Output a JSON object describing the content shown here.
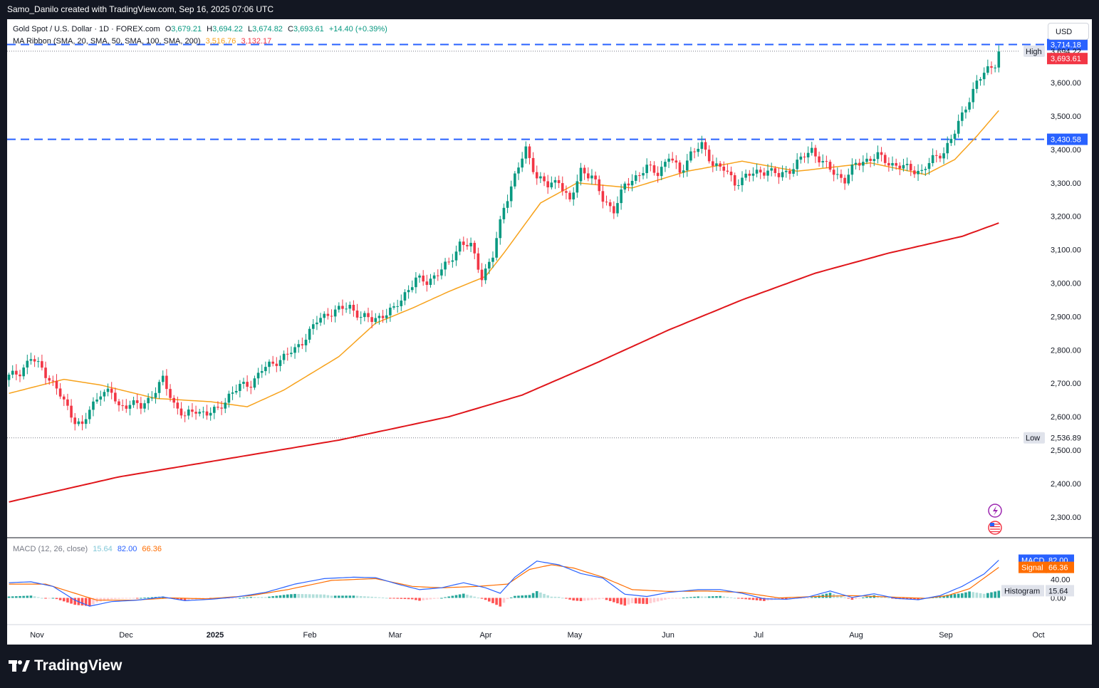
{
  "header": {
    "title": "Samo_Danilo created with TradingView.com, Sep 16, 2025 07:06 UTC"
  },
  "legend": {
    "symbol": "Gold Spot / U.S. Dollar · 1D · FOREX.com",
    "open_label": "O",
    "open": "3,679.21",
    "high_label": "H",
    "high": "3,694.22",
    "low_label": "L",
    "low": "3,674.82",
    "close_label": "C",
    "close": "3,693.61",
    "change": "+14.40 (+0.39%)",
    "ma_label": "MA Ribbon (SMA, 20, SMA, 50, SMA, 100, SMA, 200)",
    "ma1": "3,516.76",
    "ma2": "3,132.17",
    "macd_label": "MACD (12, 26, close)",
    "macd_hist": "15.64",
    "macd_macd": "82.00",
    "macd_signal": "66.36"
  },
  "currency": "USD",
  "brand": "TradingView",
  "colors": {
    "up": "#089981",
    "down": "#f23645",
    "ma20": "#f7a21b",
    "ma200": "#e0161b",
    "level": "#2962ff",
    "macd": "#2962ff",
    "signal": "#ff6d00"
  },
  "chart_data": [
    {
      "type": "candlestick",
      "title": "Gold Spot / U.S. Dollar · 1D · FOREX.com",
      "y_ticks": [
        "2,300.00",
        "2,400.00",
        "2,500.00",
        "2,600.00",
        "2,700.00",
        "2,800.00",
        "2,900.00",
        "3,000.00",
        "3,100.00",
        "3,200.00",
        "3,300.00",
        "3,400.00",
        "3,500.00",
        "3,600.00"
      ],
      "x_ticks": [
        "Nov",
        "Dec",
        "2025",
        "Feb",
        "Mar",
        "Apr",
        "May",
        "Jun",
        "Jul",
        "Aug",
        "Sep",
        "Oct"
      ],
      "ylim": [
        2240,
        3790
      ],
      "price_labels": [
        {
          "text": "3,714.18",
          "kind": "level"
        },
        {
          "text": "High",
          "kind": "tag"
        },
        {
          "text": "3,694.22",
          "kind": "plain"
        },
        {
          "text": "3,693.61",
          "kind": "last"
        },
        {
          "text": "3,430.58",
          "kind": "level"
        },
        {
          "text": "Low",
          "kind": "tag"
        },
        {
          "text": "2,536.89",
          "kind": "plain"
        }
      ],
      "levels": [
        3714.18,
        3430.58
      ],
      "high": 3694.22,
      "low": 2536.89,
      "close_anchors": [
        [
          0,
          2720
        ],
        [
          3,
          2735
        ],
        [
          6,
          2775
        ],
        [
          9,
          2745
        ],
        [
          12,
          2700
        ],
        [
          15,
          2645
        ],
        [
          18,
          2590
        ],
        [
          20,
          2570
        ],
        [
          22,
          2620
        ],
        [
          25,
          2675
        ],
        [
          28,
          2670
        ],
        [
          30,
          2630
        ],
        [
          33,
          2640
        ],
        [
          36,
          2630
        ],
        [
          39,
          2665
        ],
        [
          42,
          2710
        ],
        [
          45,
          2640
        ],
        [
          48,
          2600
        ],
        [
          51,
          2620
        ],
        [
          54,
          2610
        ],
        [
          57,
          2620
        ],
        [
          60,
          2665
        ],
        [
          63,
          2690
        ],
        [
          66,
          2700
        ],
        [
          69,
          2740
        ],
        [
          72,
          2760
        ],
        [
          75,
          2780
        ],
        [
          78,
          2800
        ],
        [
          81,
          2840
        ],
        [
          84,
          2885
        ],
        [
          87,
          2910
        ],
        [
          90,
          2920
        ],
        [
          93,
          2930
        ],
        [
          96,
          2900
        ],
        [
          99,
          2890
        ],
        [
          102,
          2905
        ],
        [
          105,
          2920
        ],
        [
          108,
          2970
        ],
        [
          111,
          3010
        ],
        [
          114,
          3005
        ],
        [
          117,
          3030
        ],
        [
          120,
          3060
        ],
        [
          123,
          3120
        ],
        [
          126,
          3110
        ],
        [
          129,
          3020
        ],
        [
          132,
          3080
        ],
        [
          135,
          3230
        ],
        [
          138,
          3320
        ],
        [
          141,
          3400
        ],
        [
          144,
          3320
        ],
        [
          147,
          3290
        ],
        [
          150,
          3310
        ],
        [
          153,
          3240
        ],
        [
          156,
          3340
        ],
        [
          159,
          3320
        ],
        [
          162,
          3250
        ],
        [
          165,
          3220
        ],
        [
          168,
          3290
        ],
        [
          171,
          3320
        ],
        [
          174,
          3345
        ],
        [
          177,
          3330
        ],
        [
          180,
          3380
        ],
        [
          183,
          3330
        ],
        [
          186,
          3390
        ],
        [
          189,
          3410
        ],
        [
          192,
          3360
        ],
        [
          195,
          3340
        ],
        [
          198,
          3300
        ],
        [
          201,
          3320
        ],
        [
          204,
          3330
        ],
        [
          207,
          3340
        ],
        [
          210,
          3320
        ],
        [
          213,
          3340
        ],
        [
          216,
          3370
        ],
        [
          219,
          3400
        ],
        [
          222,
          3360
        ],
        [
          225,
          3330
        ],
        [
          228,
          3310
        ],
        [
          231,
          3355
        ],
        [
          234,
          3370
        ],
        [
          237,
          3380
        ],
        [
          240,
          3360
        ],
        [
          243,
          3350
        ],
        [
          246,
          3340
        ],
        [
          249,
          3335
        ],
        [
          252,
          3370
        ],
        [
          255,
          3395
        ],
        [
          258,
          3450
        ],
        [
          261,
          3530
        ],
        [
          264,
          3600
        ],
        [
          267,
          3640
        ],
        [
          269,
          3660
        ],
        [
          270,
          3693.61
        ]
      ],
      "sma20_anchors": [
        [
          0,
          2670
        ],
        [
          15,
          2712
        ],
        [
          25,
          2695
        ],
        [
          40,
          2655
        ],
        [
          55,
          2645
        ],
        [
          65,
          2630
        ],
        [
          75,
          2680
        ],
        [
          90,
          2780
        ],
        [
          100,
          2880
        ],
        [
          110,
          2925
        ],
        [
          120,
          2975
        ],
        [
          130,
          3020
        ],
        [
          135,
          3090
        ],
        [
          145,
          3240
        ],
        [
          155,
          3300
        ],
        [
          170,
          3285
        ],
        [
          185,
          3335
        ],
        [
          200,
          3365
        ],
        [
          215,
          3335
        ],
        [
          235,
          3360
        ],
        [
          250,
          3325
        ],
        [
          258,
          3370
        ],
        [
          264,
          3440
        ],
        [
          270,
          3516.76
        ]
      ],
      "sma200_anchors": [
        [
          0,
          2345
        ],
        [
          30,
          2420
        ],
        [
          60,
          2475
        ],
        [
          90,
          2530
        ],
        [
          120,
          2600
        ],
        [
          140,
          2665
        ],
        [
          160,
          2760
        ],
        [
          180,
          2860
        ],
        [
          200,
          2950
        ],
        [
          220,
          3030
        ],
        [
          240,
          3090
        ],
        [
          260,
          3140
        ],
        [
          270,
          3180
        ]
      ],
      "visible_bars": 272
    },
    {
      "type": "macd",
      "title": "MACD (12, 26, close)",
      "y_ticks": [
        "40.00",
        "0.00"
      ],
      "x_ticks": [
        "Nov",
        "Dec",
        "2025",
        "Feb",
        "Mar",
        "Apr",
        "May",
        "Jun",
        "Jul",
        "Aug",
        "Sep",
        "Oct"
      ],
      "badges": [
        {
          "text": "MACD",
          "value": "82.00"
        },
        {
          "text": "Signal",
          "value": "66.36"
        },
        {
          "text": "Histogram",
          "value": "15.64"
        }
      ],
      "macd_anchors": [
        [
          0,
          33
        ],
        [
          6,
          35
        ],
        [
          12,
          25
        ],
        [
          18,
          -5
        ],
        [
          22,
          -18
        ],
        [
          28,
          -8
        ],
        [
          35,
          -5
        ],
        [
          42,
          2
        ],
        [
          48,
          -6
        ],
        [
          55,
          -3
        ],
        [
          62,
          2
        ],
        [
          70,
          12
        ],
        [
          78,
          30
        ],
        [
          86,
          42
        ],
        [
          94,
          45
        ],
        [
          100,
          44
        ],
        [
          106,
          30
        ],
        [
          112,
          18
        ],
        [
          118,
          22
        ],
        [
          124,
          33
        ],
        [
          130,
          22
        ],
        [
          134,
          10
        ],
        [
          138,
          45
        ],
        [
          144,
          80
        ],
        [
          150,
          72
        ],
        [
          156,
          53
        ],
        [
          162,
          43
        ],
        [
          168,
          8
        ],
        [
          174,
          3
        ],
        [
          180,
          12
        ],
        [
          188,
          18
        ],
        [
          194,
          18
        ],
        [
          200,
          10
        ],
        [
          206,
          -2
        ],
        [
          212,
          -3
        ],
        [
          218,
          2
        ],
        [
          224,
          15
        ],
        [
          230,
          1
        ],
        [
          236,
          9
        ],
        [
          242,
          -1
        ],
        [
          248,
          -4
        ],
        [
          254,
          5
        ],
        [
          260,
          25
        ],
        [
          266,
          52
        ],
        [
          270,
          82
        ]
      ],
      "signal_anchors": [
        [
          0,
          30
        ],
        [
          10,
          30
        ],
        [
          18,
          10
        ],
        [
          24,
          -5
        ],
        [
          34,
          -5
        ],
        [
          44,
          0
        ],
        [
          54,
          -2
        ],
        [
          66,
          5
        ],
        [
          76,
          18
        ],
        [
          88,
          38
        ],
        [
          100,
          42
        ],
        [
          110,
          25
        ],
        [
          118,
          22
        ],
        [
          128,
          25
        ],
        [
          136,
          30
        ],
        [
          142,
          62
        ],
        [
          148,
          72
        ],
        [
          154,
          65
        ],
        [
          162,
          45
        ],
        [
          170,
          18
        ],
        [
          180,
          14
        ],
        [
          190,
          15
        ],
        [
          200,
          12
        ],
        [
          210,
          0
        ],
        [
          220,
          3
        ],
        [
          230,
          5
        ],
        [
          240,
          2
        ],
        [
          250,
          -1
        ],
        [
          256,
          5
        ],
        [
          262,
          20
        ],
        [
          270,
          66.36
        ]
      ],
      "ylim": [
        -55,
        120
      ]
    }
  ]
}
